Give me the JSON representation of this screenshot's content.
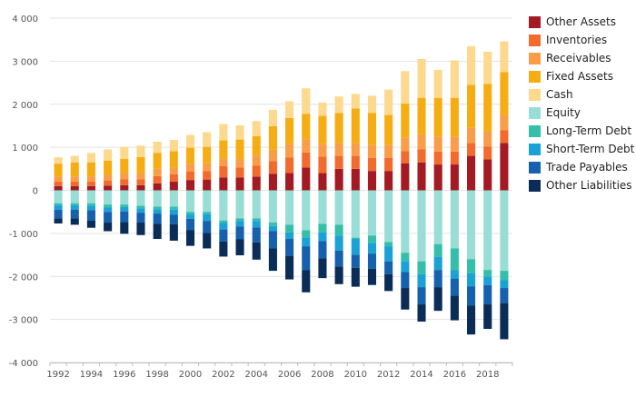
{
  "chart_data": {
    "type": "bar",
    "stacked": true,
    "categories": [
      "1992",
      "1993",
      "1994",
      "1995",
      "1996",
      "1997",
      "1998",
      "1999",
      "2000",
      "2001",
      "2002",
      "2003",
      "2004",
      "2005",
      "2006",
      "2007",
      "2008",
      "2009",
      "2010",
      "2011",
      "2012",
      "2013",
      "2014",
      "2015",
      "2016",
      "2017",
      "2018",
      "2019"
    ],
    "x_tick_labels": [
      "1992",
      "1994",
      "1996",
      "1998",
      "2000",
      "2002",
      "2004",
      "2006",
      "2008",
      "2010",
      "2012",
      "2014",
      "2016",
      "2018"
    ],
    "ylim": [
      -4000,
      4000
    ],
    "y_ticks": [
      4000,
      3000,
      2000,
      1000,
      0,
      -1000,
      -2000,
      -3000,
      -4000
    ],
    "y_tick_labels": [
      "4 000",
      "3 000",
      "2 000",
      "1 000",
      "0",
      "-1 000",
      "-2 000",
      "-3 000",
      "-4 000"
    ],
    "grid": true,
    "legend_position": "right",
    "totals": [
      770,
      800,
      870,
      950,
      1010,
      1040,
      1130,
      1170,
      1290,
      1350,
      1540,
      1510,
      1610,
      1870,
      2070,
      2370,
      2040,
      2180,
      2240,
      2200,
      2340,
      2770,
      3050,
      2800,
      3020,
      3350,
      3220,
      3460
    ],
    "series": [
      {
        "name": "Other Assets",
        "side": "positive",
        "color": "#a31a22",
        "values": [
          100,
          100,
          100,
          110,
          120,
          120,
          160,
          200,
          240,
          250,
          300,
          300,
          320,
          380,
          400,
          530,
          400,
          500,
          500,
          450,
          450,
          630,
          650,
          600,
          600,
          800,
          720,
          1100
        ]
      },
      {
        "name": "Inventories",
        "side": "positive",
        "color": "#f26a2e",
        "values": [
          100,
          100,
          100,
          120,
          140,
          140,
          170,
          170,
          200,
          200,
          260,
          230,
          250,
          300,
          360,
          350,
          380,
          300,
          300,
          300,
          300,
          280,
          300,
          300,
          300,
          300,
          300,
          300
        ]
      },
      {
        "name": "Receivables",
        "side": "positive",
        "color": "#f99d49",
        "values": [
          120,
          120,
          120,
          130,
          140,
          140,
          170,
          160,
          180,
          180,
          180,
          200,
          240,
          260,
          320,
          300,
          300,
          300,
          300,
          300,
          300,
          310,
          350,
          350,
          350,
          350,
          350,
          350
        ]
      },
      {
        "name": "Fixed Assets",
        "side": "positive",
        "color": "#f5ad13",
        "values": [
          300,
          330,
          330,
          330,
          330,
          370,
          370,
          380,
          370,
          380,
          420,
          450,
          450,
          550,
          600,
          600,
          650,
          700,
          800,
          750,
          700,
          800,
          850,
          900,
          900,
          1000,
          1100,
          1000
        ]
      },
      {
        "name": "Cash",
        "side": "positive",
        "color": "#fcd98d",
        "values": [
          150,
          150,
          220,
          260,
          280,
          270,
          260,
          260,
          300,
          340,
          380,
          330,
          350,
          380,
          390,
          590,
          310,
          380,
          340,
          400,
          590,
          750,
          900,
          650,
          870,
          900,
          750,
          710
        ]
      },
      {
        "name": "Equity",
        "side": "negative",
        "color": "#98ddd6",
        "values": [
          -300,
          -300,
          -300,
          -330,
          -330,
          -360,
          -380,
          -380,
          -500,
          -500,
          -700,
          -650,
          -650,
          -750,
          -800,
          -930,
          -780,
          -800,
          -1100,
          -1050,
          -1200,
          -1450,
          -1650,
          -1250,
          -1350,
          -1600,
          -1850,
          -1870
        ]
      },
      {
        "name": "Long-Term Debt",
        "side": "negative",
        "color": "#35bfaa",
        "values": [
          -50,
          -50,
          -60,
          -70,
          -60,
          -60,
          -60,
          -70,
          -60,
          -60,
          -60,
          -60,
          -60,
          -80,
          -180,
          -170,
          -200,
          -250,
          -30,
          -170,
          -100,
          -200,
          -300,
          -300,
          -500,
          -330,
          -150,
          -220
        ]
      },
      {
        "name": "Short-Term Debt",
        "side": "negative",
        "color": "#1aa2d6",
        "values": [
          -100,
          -100,
          -100,
          -100,
          -100,
          -100,
          -100,
          -120,
          -100,
          -150,
          -150,
          -130,
          -150,
          -120,
          -150,
          -200,
          -200,
          -350,
          -370,
          -250,
          -350,
          -250,
          -300,
          -300,
          -200,
          -300,
          -200,
          -180
        ]
      },
      {
        "name": "Trade Payables",
        "side": "negative",
        "color": "#1561ad",
        "values": [
          -200,
          -200,
          -240,
          -250,
          -250,
          -230,
          -240,
          -220,
          -260,
          -280,
          -280,
          -300,
          -350,
          -400,
          -400,
          -550,
          -400,
          -370,
          -300,
          -350,
          -300,
          -370,
          -400,
          -400,
          -400,
          -450,
          -450,
          -350
        ]
      },
      {
        "name": "Other Liabilities",
        "side": "negative",
        "color": "#0a2d57",
        "values": [
          -120,
          -150,
          -170,
          -200,
          -270,
          -290,
          -350,
          -380,
          -370,
          -360,
          -350,
          -370,
          -400,
          -520,
          -540,
          -520,
          -460,
          -410,
          -440,
          -380,
          -390,
          -500,
          -400,
          -550,
          -570,
          -670,
          -570,
          -840
        ]
      }
    ]
  }
}
